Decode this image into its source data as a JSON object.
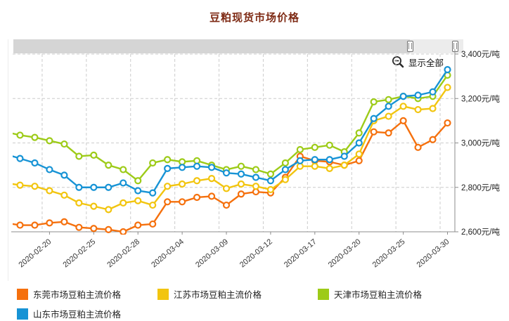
{
  "title": "豆粕现货市场价格",
  "controls": {
    "show_all_label": "显示全部",
    "zoom_out_icon": "magnifier-minus-icon"
  },
  "y_axis": {
    "unit": "元/吨",
    "tick_values": [
      3400,
      3200,
      3000,
      2800,
      2600
    ],
    "tick_labels": [
      "3,400元/吨",
      "3,200元/吨",
      "3,000元/吨",
      "2,800元/吨",
      "2,600元/吨"
    ]
  },
  "legend": {
    "items": [
      {
        "label": "东莞市场豆粕主流价格",
        "color": "#f5700d"
      },
      {
        "label": "江苏市场豆粕主流价格",
        "color": "#f2c50f"
      },
      {
        "label": "天津市场豆粕主流价格",
        "color": "#9dcb18"
      },
      {
        "label": "山东市场豆粕主流价格",
        "color": "#1793d5"
      }
    ]
  },
  "chart_data": {
    "type": "line",
    "point_style": "open-circle",
    "grid": "dashed",
    "legend_position": "bottom",
    "ylim": [
      2600,
      3400
    ],
    "x": [
      "2020-02-18",
      "2020-02-19",
      "2020-02-20",
      "2020-02-21",
      "2020-02-24",
      "2020-02-25",
      "2020-02-26",
      "2020-02-27",
      "2020-02-28",
      "2020-03-02",
      "2020-03-03",
      "2020-03-04",
      "2020-03-05",
      "2020-03-06",
      "2020-03-09",
      "2020-03-10",
      "2020-03-11",
      "2020-03-12",
      "2020-03-13",
      "2020-03-16",
      "2020-03-17",
      "2020-03-18",
      "2020-03-19",
      "2020-03-20",
      "2020-03-23",
      "2020-03-24",
      "2020-03-25",
      "2020-03-26",
      "2020-03-27",
      "2020-03-30"
    ],
    "x_tick_indexes": [
      2,
      5,
      8,
      11,
      14,
      17,
      20,
      23,
      26,
      29
    ],
    "x_tick_labels": [
      "2020-02-20",
      "2020-02-25",
      "2020-02-28",
      "2020-03-04",
      "2020-03-09",
      "2020-03-12",
      "2020-03-17",
      "2020-03-20",
      "2020-03-25",
      "2020-03-30"
    ],
    "series": [
      {
        "name": "东莞市场豆粕主流价格",
        "color": "#f5700d",
        "lead_in_value": 2640,
        "values": [
          2630,
          2630,
          2640,
          2645,
          2620,
          2615,
          2610,
          2600,
          2630,
          2635,
          2735,
          2735,
          2755,
          2760,
          2720,
          2770,
          2780,
          2775,
          2845,
          2940,
          2920,
          2915,
          2900,
          2920,
          3050,
          3045,
          3100,
          2980,
          3015,
          3090
        ]
      },
      {
        "name": "江苏市场豆粕主流价格",
        "color": "#f2c50f",
        "lead_in_value": 2820,
        "values": [
          2810,
          2805,
          2785,
          2765,
          2730,
          2715,
          2700,
          2730,
          2740,
          2720,
          2805,
          2815,
          2830,
          2840,
          2795,
          2815,
          2805,
          2790,
          2835,
          2895,
          2895,
          2885,
          2900,
          2950,
          3100,
          3120,
          3165,
          3150,
          3155,
          3250
        ]
      },
      {
        "name": "天津市场豆粕主流价格",
        "color": "#9dcb18",
        "lead_in_value": 3050,
        "values": [
          3035,
          3025,
          3010,
          2995,
          2940,
          2945,
          2900,
          2880,
          2830,
          2910,
          2925,
          2915,
          2920,
          2900,
          2880,
          2895,
          2880,
          2860,
          2910,
          2970,
          2980,
          2990,
          2960,
          3045,
          3185,
          3195,
          3210,
          3200,
          3210,
          3305
        ]
      },
      {
        "name": "山东市场豆粕主流价格",
        "color": "#1793d5",
        "lead_in_value": 2950,
        "values": [
          2930,
          2910,
          2880,
          2855,
          2800,
          2800,
          2800,
          2820,
          2785,
          2775,
          2885,
          2890,
          2895,
          2890,
          2865,
          2860,
          2845,
          2830,
          2880,
          2920,
          2925,
          2925,
          2940,
          3000,
          3110,
          3165,
          3210,
          3215,
          3230,
          3330
        ]
      }
    ]
  }
}
